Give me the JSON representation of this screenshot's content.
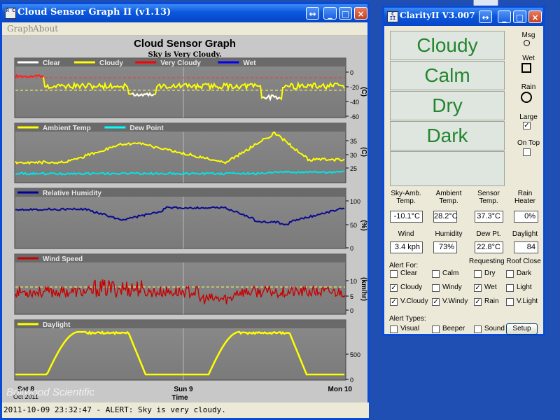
{
  "graph_window": {
    "title": "Cloud Sensor Graph II (v1.13)",
    "icon_text": "R C",
    "menu": [
      "Graph",
      "About"
    ],
    "heading": "Cloud Sensor Graph",
    "subheading": "Sky is Very Cloudy.",
    "panels": [
      {
        "legend": [
          {
            "label": "Clear",
            "color": "#ffffff"
          },
          {
            "label": "Cloudy",
            "color": "#ffff00"
          },
          {
            "label": "Very Cloudy",
            "color": "#ff0000"
          },
          {
            "label": "Wet",
            "color": "#0000ff"
          }
        ],
        "ticks": [
          "0",
          "-20",
          "-40",
          "-60"
        ],
        "unit": "(C)"
      },
      {
        "legend": [
          {
            "label": "Ambient Temp",
            "color": "#ffff00"
          },
          {
            "label": "Dew Point",
            "color": "#00ffff"
          }
        ],
        "ticks": [
          "35",
          "30",
          "25"
        ],
        "unit": "(C)"
      },
      {
        "legend": [
          {
            "label": "Relative Humidity",
            "color": "#0000a0"
          }
        ],
        "ticks": [
          "100",
          "50",
          "0"
        ],
        "unit": "(%)"
      },
      {
        "legend": [
          {
            "label": "Wind Speed",
            "color": "#c80000"
          }
        ],
        "ticks": [
          "10",
          "5",
          "0"
        ],
        "unit": "(km/hr)"
      },
      {
        "legend": [
          {
            "label": "Daylight",
            "color": "#ffff00"
          }
        ],
        "ticks": [
          "500",
          "0"
        ],
        "unit": ""
      }
    ],
    "x_ticks": [
      {
        "label": "Sat 8",
        "sub": "Oct 2011"
      },
      {
        "label": "Sun 9",
        "sub": ""
      },
      {
        "label": "Mon 10",
        "sub": ""
      }
    ],
    "x_label": "Time",
    "watermark": "Boltwood Scientific",
    "status": "2011-10-09 23:32:47 -  ALERT: Sky is very cloudy."
  },
  "clarity_window": {
    "title": "ClarityII  V3.007",
    "icon_text": "C II",
    "conditions": [
      "Cloudy",
      "Calm",
      "Dry",
      "Dark"
    ],
    "side": {
      "msg_label": "Msg",
      "wet_label": "Wet",
      "rain_label": "Rain",
      "large_label": "Large",
      "large_checked": "✓",
      "ontop_label": "On Top"
    },
    "readings_row1": [
      {
        "label": "Sky-Amb.\nTemp.",
        "value": "-10.1°C"
      },
      {
        "label": "Ambient\nTemp.",
        "value": "28.2°C"
      },
      {
        "label": "Sensor\nTemp.",
        "value": "37.3°C"
      },
      {
        "label": "Rain\nHeater",
        "value": "0%"
      }
    ],
    "readings_row2": [
      {
        "label": "Wind",
        "value": "3.4 kph"
      },
      {
        "label": "Humidity",
        "value": "73%"
      },
      {
        "label": "Dew Pt.",
        "value": "22.8°C"
      },
      {
        "label": "Daylight",
        "value": "84"
      }
    ],
    "alert_for_label": "Alert For:",
    "requesting_label": "Requesting Roof Close",
    "alert_checks": [
      {
        "label": "Clear",
        "mark": ""
      },
      {
        "label": "Calm",
        "mark": ""
      },
      {
        "label": "Dry",
        "mark": ""
      },
      {
        "label": "Dark",
        "mark": ""
      },
      {
        "label": "Cloudy",
        "mark": "✓"
      },
      {
        "label": "Windy",
        "mark": ""
      },
      {
        "label": "Wet",
        "mark": "✓"
      },
      {
        "label": "Light",
        "mark": ""
      },
      {
        "label": "V.Cloudy",
        "mark": "✓"
      },
      {
        "label": "V.Windy",
        "mark": "✓"
      },
      {
        "label": "Rain",
        "mark": "✓"
      },
      {
        "label": "V.Light",
        "mark": ""
      }
    ],
    "alert_types_label": "Alert Types:",
    "alert_types": [
      {
        "label": "Visual",
        "mark": ""
      },
      {
        "label": "Beeper",
        "mark": ""
      },
      {
        "label": "Sound",
        "mark": ""
      }
    ],
    "setup_label": "Setup"
  },
  "colors": {
    "titlebar": "#0a57dc",
    "plot_bg": "#808080",
    "condition_text": "#23862e"
  }
}
